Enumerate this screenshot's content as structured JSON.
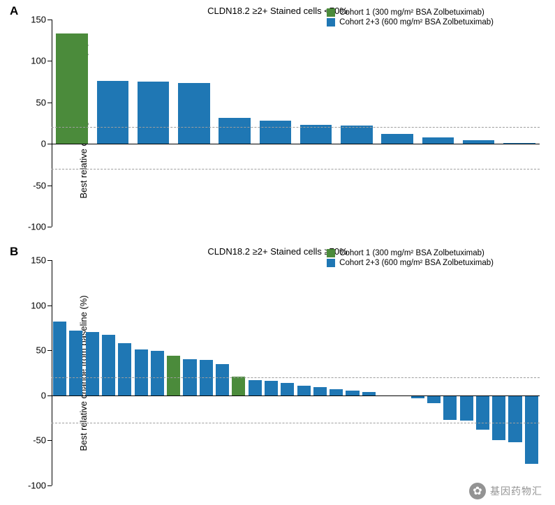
{
  "colors": {
    "cohort1": "#4b8b3b",
    "cohort23": "#1f77b4",
    "background": "#ffffff",
    "grid": "#9e9e9e",
    "axis": "#000000",
    "text": "#000000"
  },
  "legend": {
    "item1": "Cohort 1 (300 mg/m² BSA Zolbetuximab)",
    "item2": "Cohort 2+3 (600 mg/m² BSA Zolbetuximab)"
  },
  "ylabel": "Best relative change from baseline (%)",
  "reference_lines": {
    "upper": 20,
    "lower": -30
  },
  "yaxis": {
    "min": -100,
    "max": 150,
    "tick_step": 50,
    "ticks": [
      -100,
      -50,
      0,
      50,
      100,
      150
    ]
  },
  "panelA": {
    "label": "A",
    "subtitle": "CLDN18.2 ≥2+ Stained cells <70%",
    "bar_width": 0.78,
    "data": [
      {
        "v": 133,
        "cohort": 1
      },
      {
        "v": 76,
        "cohort": 2
      },
      {
        "v": 75,
        "cohort": 2
      },
      {
        "v": 73,
        "cohort": 2
      },
      {
        "v": 31,
        "cohort": 2
      },
      {
        "v": 28,
        "cohort": 2
      },
      {
        "v": 23,
        "cohort": 2
      },
      {
        "v": 22,
        "cohort": 2
      },
      {
        "v": 12,
        "cohort": 2
      },
      {
        "v": 8,
        "cohort": 2
      },
      {
        "v": 4,
        "cohort": 2
      },
      {
        "v": 1,
        "cohort": 2
      }
    ]
  },
  "panelB": {
    "label": "B",
    "subtitle": "CLDN18.2 ≥2+ Stained cells ≥70%",
    "bar_width": 0.82,
    "data": [
      {
        "v": 82,
        "cohort": 2
      },
      {
        "v": 72,
        "cohort": 2
      },
      {
        "v": 70,
        "cohort": 2
      },
      {
        "v": 67,
        "cohort": 2
      },
      {
        "v": 58,
        "cohort": 2
      },
      {
        "v": 51,
        "cohort": 2
      },
      {
        "v": 49,
        "cohort": 2
      },
      {
        "v": 44,
        "cohort": 1
      },
      {
        "v": 40,
        "cohort": 2
      },
      {
        "v": 39,
        "cohort": 2
      },
      {
        "v": 35,
        "cohort": 2
      },
      {
        "v": 21,
        "cohort": 1
      },
      {
        "v": 17,
        "cohort": 2
      },
      {
        "v": 16,
        "cohort": 2
      },
      {
        "v": 14,
        "cohort": 2
      },
      {
        "v": 11,
        "cohort": 2
      },
      {
        "v": 9,
        "cohort": 2
      },
      {
        "v": 7,
        "cohort": 2
      },
      {
        "v": 5,
        "cohort": 2
      },
      {
        "v": 4,
        "cohort": 2
      },
      {
        "v": 0,
        "cohort": 2
      },
      {
        "v": 0,
        "cohort": 2
      },
      {
        "v": -3,
        "cohort": 2
      },
      {
        "v": -9,
        "cohort": 2
      },
      {
        "v": -27,
        "cohort": 2
      },
      {
        "v": -28,
        "cohort": 2
      },
      {
        "v": -38,
        "cohort": 2
      },
      {
        "v": -50,
        "cohort": 2
      },
      {
        "v": -52,
        "cohort": 2
      },
      {
        "v": -76,
        "cohort": 2
      }
    ]
  },
  "watermark": {
    "icon": "✿",
    "text": "基因药物汇"
  }
}
